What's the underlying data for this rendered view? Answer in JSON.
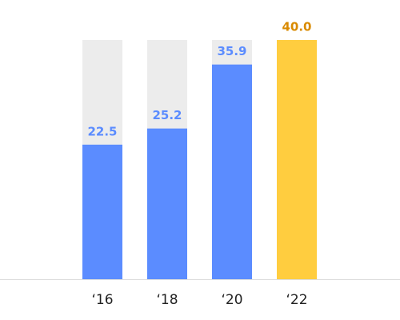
{
  "chart_data": {
    "type": "bar",
    "categories": [
      "‘16",
      "‘18",
      "‘20",
      "‘22"
    ],
    "values": [
      22.5,
      25.2,
      35.9,
      40
    ],
    "value_labels": [
      "22.5",
      "25.2",
      "35.9",
      "40.0"
    ],
    "colors": [
      "#5b8cff",
      "#5b8cff",
      "#5b8cff",
      "#ffcd3f"
    ],
    "value_label_colors": [
      "#5b8cff",
      "#5b8cff",
      "#5b8cff",
      "#d98a00"
    ],
    "track_color": "#ececec",
    "ylim": [
      0,
      40
    ]
  }
}
